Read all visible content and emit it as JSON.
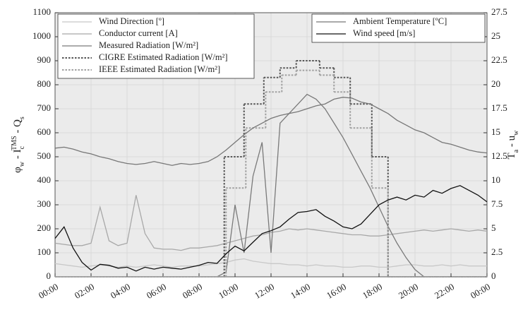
{
  "chart_data": {
    "type": "line",
    "ylabel_parts": [
      "φ",
      "w",
      " - I",
      "c",
      "TMS",
      " - Q",
      "s"
    ],
    "y2label_parts": [
      "T",
      "a",
      " - u",
      "w"
    ],
    "xlim": [
      0,
      24
    ],
    "xticks": [
      {
        "value": 0,
        "label": "00:00"
      },
      {
        "value": 2,
        "label": "02:00"
      },
      {
        "value": 4,
        "label": "04:00"
      },
      {
        "value": 6,
        "label": "06:00"
      },
      {
        "value": 8,
        "label": "08:00"
      },
      {
        "value": 10,
        "label": "10:00"
      },
      {
        "value": 12,
        "label": "12:00"
      },
      {
        "value": 14,
        "label": "14:00"
      },
      {
        "value": 16,
        "label": "16:00"
      },
      {
        "value": 18,
        "label": "18:00"
      },
      {
        "value": 20,
        "label": "20:00"
      },
      {
        "value": 22,
        "label": "22:00"
      },
      {
        "value": 24,
        "label": "00:00"
      }
    ],
    "ylim": [
      0,
      1100
    ],
    "yticks": [
      0,
      100,
      200,
      300,
      400,
      500,
      600,
      700,
      800,
      900,
      1000,
      1100
    ],
    "y2lim": [
      0,
      27.5
    ],
    "y2ticks": [
      0,
      2.5,
      5,
      7.5,
      10,
      12.5,
      15,
      17.5,
      20,
      22.5,
      25,
      27.5
    ],
    "grid": true,
    "legend": {
      "y": "upper left",
      "y2": "upper right"
    },
    "x": [
      0,
      0.5,
      1,
      1.5,
      2,
      2.5,
      3,
      3.5,
      4,
      4.5,
      5,
      5.5,
      6,
      6.5,
      7,
      7.5,
      8,
      8.5,
      9,
      9.5,
      10,
      10.5,
      11,
      11.5,
      12,
      12.5,
      13,
      13.5,
      14,
      14.5,
      15,
      15.5,
      16,
      16.5,
      17,
      17.5,
      18,
      18.5,
      19,
      19.5,
      20,
      20.5,
      21,
      21.5,
      22,
      22.5,
      23,
      23.5,
      24
    ],
    "series": [
      {
        "name": "Wind Direction [º]",
        "color": "#c8c8c8",
        "axis": "y",
        "style": "solid",
        "values": [
          55,
          50,
          45,
          40,
          45,
          50,
          45,
          40,
          45,
          40,
          45,
          50,
          45,
          40,
          45,
          45,
          45,
          50,
          55,
          60,
          70,
          75,
          65,
          60,
          55,
          55,
          50,
          50,
          45,
          50,
          45,
          45,
          40,
          40,
          45,
          45,
          40,
          40,
          45,
          50,
          50,
          45,
          45,
          50,
          45,
          50,
          45,
          45,
          45
        ]
      },
      {
        "name": "Conductor current [A]",
        "color": "#a8a8a8",
        "axis": "y",
        "style": "solid",
        "values": [
          140,
          135,
          130,
          130,
          140,
          290,
          150,
          130,
          140,
          340,
          180,
          120,
          115,
          115,
          110,
          120,
          120,
          125,
          130,
          140,
          150,
          160,
          170,
          175,
          185,
          190,
          200,
          195,
          200,
          195,
          190,
          185,
          180,
          175,
          175,
          170,
          170,
          175,
          180,
          185,
          190,
          195,
          190,
          195,
          200,
          195,
          190,
          195,
          190
        ]
      },
      {
        "name": "Measured Radiation [W/m²]",
        "color": "#7a7a7a",
        "axis": "y",
        "style": "solid",
        "values": [
          0,
          0,
          0,
          0,
          0,
          0,
          0,
          0,
          0,
          0,
          0,
          0,
          0,
          0,
          0,
          0,
          0,
          0,
          0,
          20,
          300,
          100,
          420,
          560,
          100,
          640,
          680,
          720,
          760,
          740,
          700,
          640,
          580,
          510,
          440,
          370,
          290,
          210,
          140,
          80,
          30,
          0,
          null,
          null,
          null,
          null,
          null,
          null,
          null
        ]
      },
      {
        "name": "CIGRE Estimated Radiation [W/m²]",
        "color": "#555555",
        "axis": "y",
        "style": "dotted",
        "step": "post",
        "x": [
          0,
          9.4,
          10.5,
          11.6,
          12.5,
          13.4,
          14.7,
          15.5,
          16.4,
          17.6,
          18.5,
          24
        ],
        "values": [
          0,
          500,
          720,
          830,
          870,
          900,
          870,
          830,
          720,
          500,
          0,
          0
        ]
      },
      {
        "name": "IEEE Estimated Radiation [W/m²]",
        "color": "#a0a0a0",
        "axis": "y",
        "style": "dotted",
        "step": "post",
        "x": [
          0,
          9.5,
          10.6,
          11.7,
          12.6,
          13.4,
          14.7,
          15.5,
          16.4,
          17.6,
          18.5,
          24
        ],
        "values": [
          0,
          370,
          620,
          770,
          840,
          860,
          840,
          770,
          620,
          370,
          0,
          0
        ]
      },
      {
        "name": "Ambient Temperature [ºC]",
        "color": "#777777",
        "axis": "y2",
        "style": "solid",
        "values": [
          13.4,
          13.5,
          13.3,
          13.0,
          12.8,
          12.5,
          12.3,
          12.0,
          11.8,
          11.7,
          11.8,
          12.0,
          11.8,
          11.6,
          11.8,
          11.7,
          11.8,
          12.0,
          12.5,
          13.2,
          14.0,
          14.8,
          15.5,
          16.0,
          16.5,
          16.8,
          17.0,
          17.2,
          17.5,
          17.8,
          18.0,
          18.5,
          18.7,
          18.6,
          18.2,
          18.0,
          17.5,
          17.0,
          16.3,
          15.8,
          15.3,
          15.0,
          14.5,
          14.0,
          13.8,
          13.5,
          13.2,
          13.0,
          12.9
        ]
      },
      {
        "name": "Wind speed [m/s]",
        "color": "#111111",
        "axis": "y2",
        "style": "solid",
        "values": [
          4,
          5.2,
          3,
          1.5,
          0.7,
          1.3,
          1.2,
          0.9,
          1,
          0.6,
          1,
          0.8,
          1,
          0.9,
          0.8,
          1,
          1.2,
          1.5,
          1.4,
          2.4,
          3.2,
          2.7,
          3.6,
          4.5,
          4.8,
          5.2,
          6.0,
          6.7,
          6.8,
          7.0,
          6.3,
          5.8,
          5.2,
          5.0,
          5.5,
          6.5,
          7.5,
          8.0,
          8.3,
          8.0,
          8.5,
          8.3,
          9.0,
          8.7,
          9.2,
          9.5,
          9.0,
          8.5,
          7.8
        ]
      }
    ]
  }
}
